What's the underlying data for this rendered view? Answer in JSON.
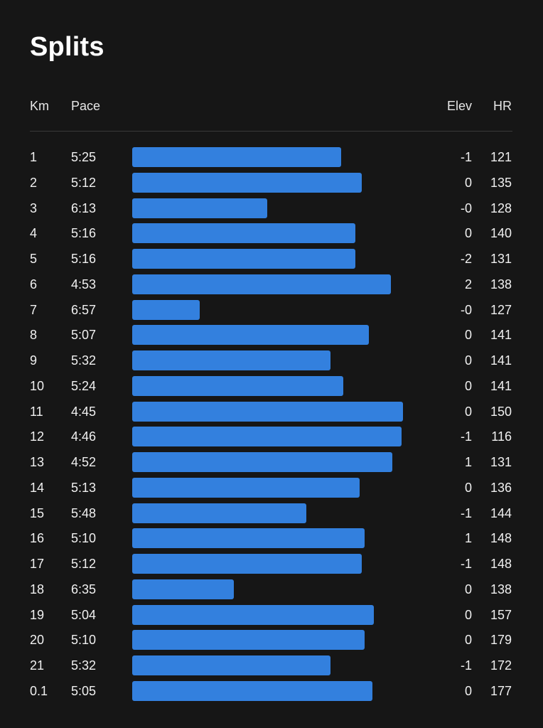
{
  "title": "Splits",
  "columns": {
    "km": "Km",
    "pace": "Pace",
    "elev": "Elev",
    "hr": "HR"
  },
  "colors": {
    "background": "#161616",
    "bar": "#3380de",
    "text": "#f0f0f0"
  },
  "splits": [
    {
      "km": "1",
      "pace": "5:25",
      "elev": "-1",
      "hr": "121"
    },
    {
      "km": "2",
      "pace": "5:12",
      "elev": "0",
      "hr": "135"
    },
    {
      "km": "3",
      "pace": "6:13",
      "elev": "-0",
      "hr": "128"
    },
    {
      "km": "4",
      "pace": "5:16",
      "elev": "0",
      "hr": "140"
    },
    {
      "km": "5",
      "pace": "5:16",
      "elev": "-2",
      "hr": "131"
    },
    {
      "km": "6",
      "pace": "4:53",
      "elev": "2",
      "hr": "138"
    },
    {
      "km": "7",
      "pace": "6:57",
      "elev": "-0",
      "hr": "127"
    },
    {
      "km": "8",
      "pace": "5:07",
      "elev": "0",
      "hr": "141"
    },
    {
      "km": "9",
      "pace": "5:32",
      "elev": "0",
      "hr": "141"
    },
    {
      "km": "10",
      "pace": "5:24",
      "elev": "0",
      "hr": "141"
    },
    {
      "km": "11",
      "pace": "4:45",
      "elev": "0",
      "hr": "150"
    },
    {
      "km": "12",
      "pace": "4:46",
      "elev": "-1",
      "hr": "116"
    },
    {
      "km": "13",
      "pace": "4:52",
      "elev": "1",
      "hr": "131"
    },
    {
      "km": "14",
      "pace": "5:13",
      "elev": "0",
      "hr": "136"
    },
    {
      "km": "15",
      "pace": "5:48",
      "elev": "-1",
      "hr": "144"
    },
    {
      "km": "16",
      "pace": "5:10",
      "elev": "1",
      "hr": "148"
    },
    {
      "km": "17",
      "pace": "5:12",
      "elev": "-1",
      "hr": "148"
    },
    {
      "km": "18",
      "pace": "6:35",
      "elev": "0",
      "hr": "138"
    },
    {
      "km": "19",
      "pace": "5:04",
      "elev": "0",
      "hr": "157"
    },
    {
      "km": "20",
      "pace": "5:10",
      "elev": "0",
      "hr": "179"
    },
    {
      "km": "21",
      "pace": "5:32",
      "elev": "-1",
      "hr": "172"
    },
    {
      "km": "0.1",
      "pace": "5:05",
      "elev": "0",
      "hr": "177"
    }
  ]
}
